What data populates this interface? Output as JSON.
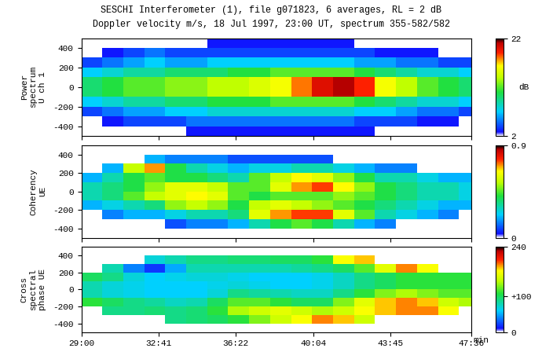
{
  "chart_data": [
    {
      "type": "heatmap",
      "title": "SESCHI Interferometer (1), file g071823, 6 averages, RL = 2 dB",
      "subtitle": "Doppler velocity m/s, 18 Jul 1997, 23:00 UT, spectrum 355-582/582",
      "ylabel": "Power\nspectrum\nU ch 1",
      "tick_labels": "y",
      "xlim": [
        29.0,
        47.6
      ],
      "xticks": [
        {
          "value": 29.0,
          "label": "29:00"
        },
        {
          "value": 32.683,
          "label": "32:41"
        },
        {
          "value": 36.367,
          "label": "36:22"
        },
        {
          "value": 40.067,
          "label": "40:04"
        },
        {
          "value": 43.75,
          "label": "43:45"
        },
        {
          "value": 47.6,
          "label": "47:36"
        }
      ],
      "ylim": [
        -500,
        500
      ],
      "yticks": [
        -400,
        -200,
        0,
        200,
        400
      ],
      "x_edges": [
        29,
        30,
        31,
        32,
        33,
        34,
        35,
        36,
        37,
        38,
        39,
        40,
        41,
        42,
        43,
        44,
        45,
        46,
        47,
        47.6
      ],
      "y_edges": [
        -500,
        -400,
        -300,
        -200,
        -100,
        0,
        100,
        200,
        300,
        400,
        500
      ],
      "columns": [
        [
          null,
          null,
          4,
          7,
          10,
          10,
          7,
          4,
          null,
          null
        ],
        [
          null,
          3,
          5,
          8,
          11,
          11,
          8,
          5,
          3,
          null
        ],
        [
          null,
          4,
          6,
          9,
          12,
          12,
          9,
          6,
          4,
          null
        ],
        [
          null,
          4,
          6,
          9,
          12,
          12,
          9,
          7,
          5,
          null
        ],
        [
          null,
          4,
          7,
          10,
          13,
          13,
          10,
          6,
          4,
          null
        ],
        [
          3,
          5,
          7,
          10,
          13,
          13,
          10,
          6,
          4,
          null
        ],
        [
          3,
          5,
          8,
          11,
          14,
          14,
          10,
          7,
          4,
          3
        ],
        [
          3,
          5,
          8,
          11,
          14,
          14,
          11,
          7,
          4,
          3
        ],
        [
          3,
          5,
          8,
          11,
          15,
          15,
          11,
          7,
          4,
          3
        ],
        [
          3,
          5,
          8,
          12,
          16,
          16,
          12,
          7,
          4,
          3
        ],
        [
          3,
          5,
          8,
          12,
          18,
          18,
          12,
          7,
          4,
          3
        ],
        [
          3,
          5,
          8,
          12,
          20,
          20,
          12,
          7,
          4,
          3
        ],
        [
          3,
          5,
          8,
          12,
          21,
          21,
          12,
          7,
          4,
          3
        ],
        [
          3,
          4,
          7,
          11,
          19,
          19,
          11,
          6,
          4,
          null
        ],
        [
          null,
          4,
          7,
          10,
          16,
          16,
          10,
          6,
          3,
          null
        ],
        [
          null,
          4,
          6,
          9,
          14,
          14,
          9,
          5,
          3,
          null
        ],
        [
          null,
          3,
          5,
          8,
          12,
          12,
          8,
          5,
          3,
          null
        ],
        [
          null,
          3,
          5,
          8,
          11,
          11,
          8,
          4,
          null,
          null
        ],
        [
          null,
          null,
          4,
          7,
          10,
          10,
          7,
          4,
          null,
          null
        ]
      ],
      "colorbar_range": [
        2,
        22
      ],
      "colorbar_ticks": [
        2,
        22
      ],
      "colorbar_label": "dB"
    },
    {
      "type": "heatmap",
      "ylabel": "Coherency\nUE",
      "tick_labels": "y",
      "xlim": [
        29.0,
        47.6
      ],
      "xticks": [
        {
          "value": 29.0,
          "label": "29:00"
        },
        {
          "value": 32.683,
          "label": "32:41"
        },
        {
          "value": 36.367,
          "label": "36:22"
        },
        {
          "value": 40.067,
          "label": "40:04"
        },
        {
          "value": 43.75,
          "label": "43:45"
        },
        {
          "value": 47.6,
          "label": "47:36"
        }
      ],
      "ylim": [
        -500,
        500
      ],
      "yticks": [
        -400,
        -200,
        0,
        200,
        400
      ],
      "x_edges": [
        29,
        30,
        31,
        32,
        33,
        34,
        35,
        36,
        37,
        38,
        39,
        40,
        41,
        42,
        43,
        44,
        45,
        46,
        47,
        47.6
      ],
      "y_edges": [
        -500,
        -400,
        -300,
        -200,
        -100,
        0,
        100,
        200,
        300,
        400,
        500
      ],
      "columns": [
        [
          null,
          null,
          null,
          0.2,
          0.3,
          0.3,
          0.2,
          null,
          null,
          null
        ],
        [
          null,
          null,
          0.15,
          0.25,
          0.35,
          0.35,
          0.3,
          0.2,
          null,
          null
        ],
        [
          null,
          null,
          0.2,
          0.3,
          0.45,
          0.4,
          0.4,
          0.55,
          null,
          null
        ],
        [
          null,
          null,
          0.2,
          0.35,
          0.55,
          0.5,
          0.45,
          0.7,
          0.2,
          null
        ],
        [
          null,
          0.1,
          0.25,
          0.5,
          0.6,
          0.6,
          0.4,
          0.4,
          0.15,
          null
        ],
        [
          null,
          0.15,
          0.3,
          0.55,
          0.65,
          0.6,
          0.4,
          0.3,
          0.15,
          null
        ],
        [
          null,
          0.15,
          0.3,
          0.5,
          0.6,
          0.55,
          0.35,
          0.25,
          0.15,
          null
        ],
        [
          null,
          0.2,
          0.35,
          0.4,
          0.45,
          0.45,
          0.3,
          0.2,
          0.1,
          null
        ],
        [
          null,
          0.3,
          0.6,
          0.55,
          0.4,
          0.45,
          0.45,
          0.25,
          0.1,
          null
        ],
        [
          null,
          0.4,
          0.7,
          0.6,
          0.45,
          0.6,
          0.55,
          0.25,
          0.1,
          null
        ],
        [
          null,
          0.45,
          0.75,
          0.55,
          0.45,
          0.7,
          0.65,
          0.3,
          0.1,
          null
        ],
        [
          null,
          0.4,
          0.75,
          0.5,
          0.45,
          0.75,
          0.6,
          0.3,
          0.1,
          null
        ],
        [
          null,
          0.3,
          0.6,
          0.45,
          0.5,
          0.65,
          0.5,
          0.25,
          null,
          null
        ],
        [
          null,
          0.2,
          0.45,
          0.4,
          0.45,
          0.5,
          0.4,
          0.2,
          null,
          null
        ],
        [
          null,
          0.15,
          0.3,
          0.35,
          0.4,
          0.4,
          0.3,
          0.15,
          null,
          null
        ],
        [
          null,
          null,
          0.25,
          0.3,
          0.35,
          0.35,
          0.3,
          0.15,
          null,
          null
        ],
        [
          null,
          null,
          0.2,
          0.25,
          0.3,
          0.3,
          0.25,
          null,
          null,
          null
        ],
        [
          null,
          null,
          0.15,
          0.2,
          0.3,
          0.3,
          0.2,
          null,
          null,
          null
        ],
        [
          null,
          null,
          null,
          0.2,
          0.25,
          0.25,
          0.2,
          null,
          null,
          null
        ]
      ],
      "colorbar_range": [
        0,
        0.9
      ],
      "colorbar_ticks": [
        0,
        0.9
      ]
    },
    {
      "type": "heatmap",
      "ylabel": "Cross\nspectral\nphase UE",
      "xlabel": "min",
      "xlim": [
        29.0,
        47.6
      ],
      "xticks": [
        {
          "value": 29.0,
          "label": "29:00"
        },
        {
          "value": 32.683,
          "label": "32:41"
        },
        {
          "value": 36.367,
          "label": "36:22"
        },
        {
          "value": 40.067,
          "label": "40:04"
        },
        {
          "value": 43.75,
          "label": "43:45"
        },
        {
          "value": 47.6,
          "label": "47:36"
        }
      ],
      "ylim": [
        -500,
        500
      ],
      "yticks": [
        -400,
        -200,
        0,
        200,
        400
      ],
      "x_edges": [
        29,
        30,
        31,
        32,
        33,
        34,
        35,
        36,
        37,
        38,
        39,
        40,
        41,
        42,
        43,
        44,
        45,
        46,
        47,
        47.6
      ],
      "y_edges": [
        -500,
        -400,
        -300,
        -200,
        -100,
        0,
        100,
        200,
        300,
        400,
        500
      ],
      "columns": [
        [
          null,
          null,
          null,
          110,
          80,
          80,
          100,
          null,
          null,
          null
        ],
        [
          null,
          null,
          90,
          100,
          70,
          70,
          90,
          80,
          null,
          null
        ],
        [
          null,
          null,
          90,
          90,
          65,
          65,
          70,
          40,
          null,
          null
        ],
        [
          null,
          null,
          95,
          85,
          60,
          60,
          60,
          20,
          70,
          null
        ],
        [
          null,
          90,
          90,
          75,
          60,
          60,
          65,
          50,
          80,
          null
        ],
        [
          null,
          95,
          95,
          80,
          60,
          60,
          70,
          80,
          90,
          null
        ],
        [
          null,
          100,
          110,
          100,
          70,
          65,
          70,
          80,
          90,
          null
        ],
        [
          null,
          110,
          140,
          120,
          90,
          70,
          65,
          80,
          95,
          null
        ],
        [
          null,
          130,
          150,
          120,
          85,
          65,
          60,
          80,
          95,
          null
        ],
        [
          null,
          150,
          160,
          110,
          80,
          60,
          60,
          80,
          100,
          null
        ],
        [
          null,
          170,
          150,
          100,
          75,
          60,
          60,
          85,
          100,
          null
        ],
        [
          null,
          190,
          140,
          100,
          75,
          65,
          65,
          90,
          110,
          null
        ],
        [
          null,
          180,
          150,
          130,
          90,
          75,
          75,
          100,
          170,
          null
        ],
        [
          null,
          150,
          170,
          160,
          110,
          90,
          90,
          120,
          180,
          null
        ],
        [
          null,
          null,
          180,
          180,
          130,
          100,
          100,
          160,
          null,
          null
        ],
        [
          null,
          null,
          190,
          190,
          140,
          110,
          110,
          190,
          null,
          null
        ],
        [
          null,
          null,
          190,
          180,
          130,
          110,
          110,
          170,
          null,
          null
        ],
        [
          null,
          null,
          170,
          150,
          120,
          110,
          110,
          null,
          null,
          null
        ],
        [
          null,
          null,
          null,
          140,
          120,
          110,
          110,
          null,
          null,
          null
        ]
      ],
      "colorbar_range": [
        0,
        240
      ],
      "colorbar_ticks": [
        0,
        {
          "value": 100,
          "label": "+100"
        },
        240
      ]
    }
  ]
}
